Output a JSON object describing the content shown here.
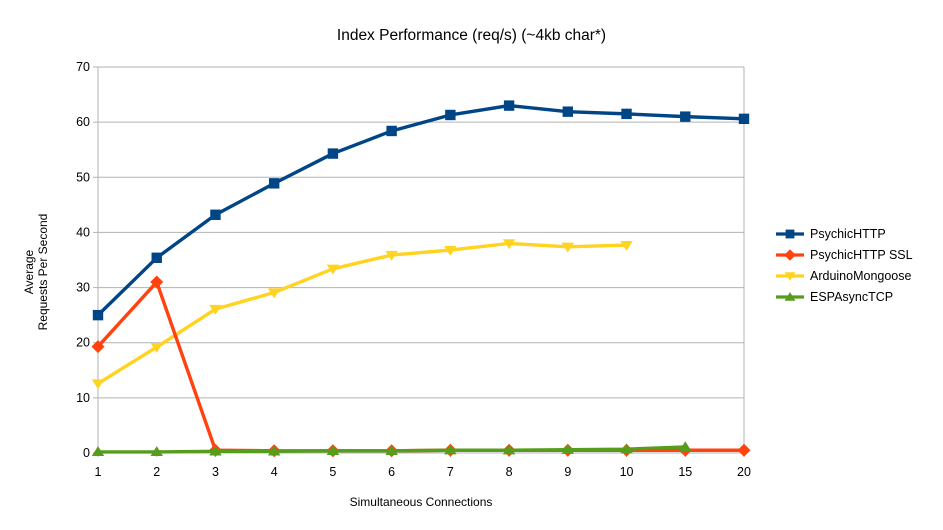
{
  "chart_data": {
    "type": "line",
    "title": "Index Performance (req/s) (~4kb char*)",
    "xlabel": "Simultaneous Connections",
    "ylabel_lines": [
      "Average",
      "Requests Per Second"
    ],
    "categories": [
      "1",
      "2",
      "3",
      "4",
      "5",
      "6",
      "7",
      "8",
      "9",
      "10",
      "15",
      "20"
    ],
    "y_ticks": [
      0,
      10,
      20,
      30,
      40,
      50,
      60,
      70
    ],
    "ylim": [
      0,
      70
    ],
    "grid": "horizontal-only",
    "legend_position": "right",
    "series": [
      {
        "name": "PsychicHTTP",
        "color": "#004586",
        "marker": "square",
        "values": [
          25,
          35.4,
          43.2,
          48.9,
          54.3,
          58.4,
          61.3,
          63,
          61.9,
          61.5,
          61,
          60.6
        ]
      },
      {
        "name": "PsychicHTTP SSL",
        "color": "#ff420e",
        "marker": "diamond",
        "values": [
          19.3,
          31,
          0.5,
          0.4,
          0.4,
          0.4,
          0.5,
          0.5,
          0.5,
          0.5,
          0.5,
          0.5
        ]
      },
      {
        "name": "ArduinoMongoose",
        "color": "#ffd320",
        "marker": "triangle-down",
        "values": [
          12.6,
          19.2,
          26.1,
          29.1,
          33.4,
          35.9,
          36.8,
          38,
          37.4,
          37.7
        ]
      },
      {
        "name": "ESPAsyncTCP",
        "color": "#579d1c",
        "marker": "triangle-up",
        "values": [
          0.2,
          0.2,
          0.3,
          0.3,
          0.4,
          0.4,
          0.5,
          0.5,
          0.6,
          0.7,
          1.1
        ]
      }
    ],
    "colors": {
      "grid": "#b3b3b3",
      "axis": "#b3b3b3",
      "text": "#000000",
      "background": "#ffffff"
    }
  }
}
